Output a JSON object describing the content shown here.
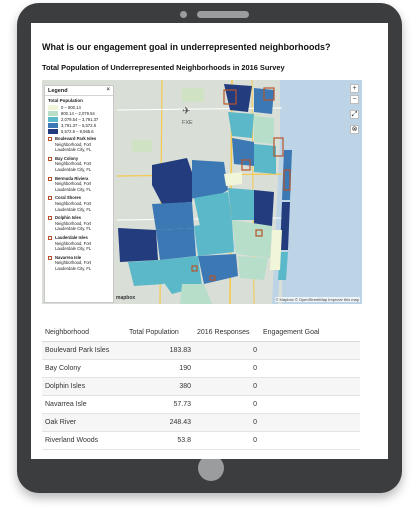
{
  "page": {
    "heading": "What is our engagement goal in underrepresented neighborhoods?",
    "map_title": "Total Population of Underrepresented Neighborhoods in 2016 Survey"
  },
  "map": {
    "legend_label": "Legend",
    "legend_close": "×",
    "population_title": "Total Population",
    "ranges": [
      {
        "label": "0 – 800.14",
        "color": "#f2f6d8"
      },
      {
        "label": "800.14 – 2,079.54",
        "color": "#b6dec9"
      },
      {
        "label": "2,079.54 – 3,791.37",
        "color": "#5ab8c9"
      },
      {
        "label": "3,791.37 – 5,572.8",
        "color": "#3b78b4"
      },
      {
        "label": "5,572.8 – 9,565.6",
        "color": "#233c7e"
      }
    ],
    "neighborhood_suffix": "Neighborhood, Fort Lauderdale City, FL",
    "neighborhoods": [
      "Boulevard Park Isles",
      "Bay Colony",
      "Bermuda Riviera",
      "Coral Shores",
      "Dolphin Isles",
      "Lauderdale Isles",
      "Navarrea Isle"
    ],
    "place_label": "FXE",
    "zoom_in": "+",
    "zoom_out": "−",
    "attribution": "© Mapbox © OpenStreetMap  Improve this map",
    "logo": "mapbox",
    "colors": {
      "water": "#bcd4e6",
      "land": "#d9dfd7",
      "park": "#cfe3c4",
      "road": "#f4c94e",
      "outline": "#b5542b"
    }
  },
  "table": {
    "headers": [
      "Neighborhood",
      "Total Population",
      "2016 Responses",
      "Engagement Goal"
    ],
    "rows": [
      {
        "name": "Boulevard Park Isles",
        "population": "183.83",
        "responses": "0",
        "goal": ""
      },
      {
        "name": "Bay Colony",
        "population": "190",
        "responses": "0",
        "goal": ""
      },
      {
        "name": "Dolphin Isles",
        "population": "380",
        "responses": "0",
        "goal": ""
      },
      {
        "name": "Navarrea Isle",
        "population": "57.73",
        "responses": "0",
        "goal": ""
      },
      {
        "name": "Oak River",
        "population": "248.43",
        "responses": "0",
        "goal": ""
      },
      {
        "name": "Riverland Woods",
        "population": "53.8",
        "responses": "0",
        "goal": ""
      }
    ]
  }
}
